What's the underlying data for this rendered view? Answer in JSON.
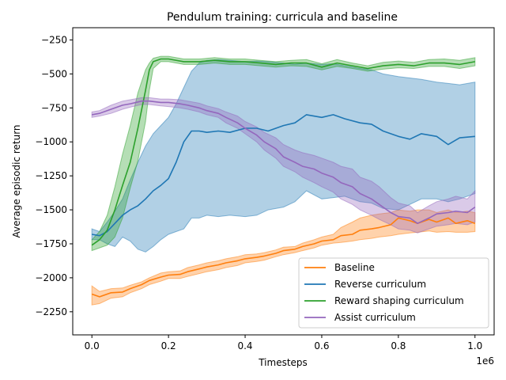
{
  "chart_data": {
    "type": "line",
    "title": "Pendulum training: curricula and baseline",
    "xlabel": "Timesteps",
    "ylabel": "Average episodic return",
    "x_offset_label": "1e6",
    "xlim": [
      -0.05,
      1.05
    ],
    "ylim": [
      -2420,
      -160
    ],
    "xticks": [
      0.0,
      0.2,
      0.4,
      0.6,
      0.8,
      1.0
    ],
    "xtick_labels": [
      "0.0",
      "0.2",
      "0.4",
      "0.6",
      "0.8",
      "1.0"
    ],
    "yticks": [
      -2250,
      -2000,
      -1750,
      -1500,
      -1250,
      -1000,
      -750,
      -500,
      -250
    ],
    "ytick_labels": [
      "−2250",
      "−2000",
      "−1750",
      "−1500",
      "−1250",
      "−1000",
      "−750",
      "−500",
      "−250"
    ],
    "grid": false,
    "legend_position": "lower-right",
    "series": [
      {
        "name": "Baseline",
        "color": "#ff7f0e",
        "x": [
          0.0,
          0.02,
          0.05,
          0.08,
          0.1,
          0.13,
          0.15,
          0.18,
          0.2,
          0.23,
          0.25,
          0.28,
          0.3,
          0.33,
          0.35,
          0.38,
          0.4,
          0.43,
          0.45,
          0.48,
          0.5,
          0.53,
          0.55,
          0.58,
          0.6,
          0.63,
          0.65,
          0.68,
          0.7,
          0.73,
          0.75,
          0.78,
          0.8,
          0.83,
          0.85,
          0.88,
          0.9,
          0.93,
          0.95,
          0.98,
          1.0
        ],
        "values": [
          -2120,
          -2140,
          -2110,
          -2105,
          -2080,
          -2050,
          -2020,
          -1995,
          -1980,
          -1975,
          -1955,
          -1935,
          -1920,
          -1905,
          -1890,
          -1875,
          -1860,
          -1850,
          -1840,
          -1820,
          -1800,
          -1790,
          -1770,
          -1750,
          -1730,
          -1720,
          -1690,
          -1680,
          -1650,
          -1640,
          -1630,
          -1610,
          -1560,
          -1580,
          -1600,
          -1570,
          -1590,
          -1560,
          -1600,
          -1580,
          -1600
        ],
        "lower": [
          -2200,
          -2190,
          -2150,
          -2140,
          -2110,
          -2080,
          -2050,
          -2025,
          -2005,
          -2005,
          -1990,
          -1970,
          -1955,
          -1940,
          -1925,
          -1910,
          -1890,
          -1880,
          -1870,
          -1845,
          -1830,
          -1815,
          -1800,
          -1780,
          -1760,
          -1745,
          -1740,
          -1730,
          -1720,
          -1710,
          -1700,
          -1690,
          -1680,
          -1670,
          -1665,
          -1655,
          -1665,
          -1660,
          -1665,
          -1665,
          -1660
        ],
        "upper": [
          -2060,
          -2100,
          -2080,
          -2075,
          -2055,
          -2030,
          -2000,
          -1965,
          -1955,
          -1950,
          -1925,
          -1905,
          -1890,
          -1875,
          -1860,
          -1845,
          -1830,
          -1825,
          -1815,
          -1795,
          -1775,
          -1770,
          -1745,
          -1720,
          -1700,
          -1680,
          -1630,
          -1590,
          -1560,
          -1540,
          -1530,
          -1520,
          -1500,
          -1510,
          -1500,
          -1500,
          -1520,
          -1500,
          -1520,
          -1510,
          -1520
        ]
      },
      {
        "name": "Reverse curriculum",
        "color": "#1f77b4",
        "x": [
          0.0,
          0.02,
          0.04,
          0.06,
          0.08,
          0.1,
          0.12,
          0.14,
          0.16,
          0.18,
          0.2,
          0.22,
          0.24,
          0.26,
          0.28,
          0.3,
          0.33,
          0.36,
          0.4,
          0.43,
          0.46,
          0.5,
          0.53,
          0.56,
          0.6,
          0.63,
          0.66,
          0.7,
          0.73,
          0.76,
          0.8,
          0.83,
          0.86,
          0.9,
          0.93,
          0.96,
          1.0
        ],
        "values": [
          -1680,
          -1690,
          -1660,
          -1600,
          -1540,
          -1500,
          -1470,
          -1420,
          -1360,
          -1320,
          -1270,
          -1150,
          -1000,
          -920,
          -920,
          -930,
          -920,
          -930,
          -900,
          -900,
          -920,
          -880,
          -860,
          -800,
          -820,
          -800,
          -830,
          -860,
          -870,
          -920,
          -960,
          -980,
          -940,
          -960,
          -1020,
          -970,
          -960
        ],
        "lower": [
          -1720,
          -1720,
          -1750,
          -1770,
          -1700,
          -1730,
          -1790,
          -1810,
          -1770,
          -1720,
          -1680,
          -1660,
          -1640,
          -1560,
          -1560,
          -1540,
          -1550,
          -1540,
          -1550,
          -1540,
          -1500,
          -1480,
          -1440,
          -1360,
          -1420,
          -1410,
          -1400,
          -1440,
          -1450,
          -1490,
          -1500,
          -1460,
          -1420,
          -1420,
          -1440,
          -1420,
          -1380
        ],
        "upper": [
          -1640,
          -1660,
          -1590,
          -1510,
          -1420,
          -1280,
          -1150,
          -1030,
          -940,
          -880,
          -820,
          -720,
          -600,
          -480,
          -420,
          -400,
          -395,
          -400,
          -410,
          -405,
          -410,
          -420,
          -430,
          -420,
          -430,
          -425,
          -440,
          -460,
          -470,
          -500,
          -520,
          -530,
          -540,
          -560,
          -570,
          -580,
          -560
        ]
      },
      {
        "name": "Reward shaping curriculum",
        "color": "#2ca02c",
        "x": [
          0.0,
          0.02,
          0.04,
          0.06,
          0.08,
          0.1,
          0.12,
          0.14,
          0.15,
          0.16,
          0.18,
          0.2,
          0.24,
          0.28,
          0.32,
          0.36,
          0.4,
          0.44,
          0.48,
          0.52,
          0.56,
          0.6,
          0.64,
          0.68,
          0.72,
          0.76,
          0.8,
          0.84,
          0.88,
          0.92,
          0.96,
          1.0
        ],
        "values": [
          -1760,
          -1720,
          -1650,
          -1500,
          -1320,
          -1150,
          -900,
          -620,
          -470,
          -410,
          -390,
          -390,
          -410,
          -410,
          -400,
          -410,
          -410,
          -420,
          -430,
          -420,
          -420,
          -450,
          -420,
          -440,
          -460,
          -440,
          -430,
          -440,
          -420,
          -420,
          -430,
          -410
        ],
        "lower": [
          -1800,
          -1780,
          -1760,
          -1700,
          -1560,
          -1340,
          -1140,
          -850,
          -620,
          -460,
          -410,
          -410,
          -430,
          -430,
          -420,
          -430,
          -430,
          -440,
          -450,
          -440,
          -445,
          -470,
          -445,
          -460,
          -480,
          -465,
          -455,
          -460,
          -445,
          -445,
          -460,
          -440
        ],
        "upper": [
          -1720,
          -1660,
          -1540,
          -1330,
          -1090,
          -880,
          -640,
          -470,
          -420,
          -385,
          -370,
          -370,
          -390,
          -390,
          -380,
          -390,
          -390,
          -400,
          -410,
          -400,
          -395,
          -425,
          -395,
          -420,
          -440,
          -415,
          -405,
          -415,
          -395,
          -390,
          -400,
          -380
        ]
      },
      {
        "name": "Assist curriculum",
        "color": "#9467bd",
        "x": [
          0.0,
          0.02,
          0.05,
          0.08,
          0.1,
          0.13,
          0.15,
          0.18,
          0.2,
          0.23,
          0.25,
          0.28,
          0.3,
          0.33,
          0.35,
          0.38,
          0.4,
          0.43,
          0.45,
          0.48,
          0.5,
          0.53,
          0.55,
          0.58,
          0.6,
          0.63,
          0.65,
          0.68,
          0.7,
          0.73,
          0.75,
          0.78,
          0.8,
          0.83,
          0.85,
          0.88,
          0.9,
          0.93,
          0.95,
          0.98,
          1.0
        ],
        "values": [
          -800,
          -790,
          -760,
          -730,
          -720,
          -700,
          -700,
          -710,
          -710,
          -720,
          -730,
          -750,
          -770,
          -790,
          -820,
          -860,
          -900,
          -950,
          -1000,
          -1050,
          -1110,
          -1150,
          -1180,
          -1200,
          -1230,
          -1260,
          -1300,
          -1330,
          -1380,
          -1420,
          -1460,
          -1520,
          -1550,
          -1560,
          -1600,
          -1560,
          -1530,
          -1520,
          -1510,
          -1520,
          -1480
        ],
        "lower": [
          -820,
          -810,
          -790,
          -760,
          -745,
          -725,
          -725,
          -735,
          -740,
          -750,
          -760,
          -780,
          -800,
          -820,
          -860,
          -900,
          -940,
          -1000,
          -1060,
          -1120,
          -1180,
          -1220,
          -1260,
          -1300,
          -1330,
          -1370,
          -1420,
          -1460,
          -1500,
          -1540,
          -1570,
          -1610,
          -1640,
          -1650,
          -1670,
          -1640,
          -1620,
          -1610,
          -1600,
          -1610,
          -1590
        ],
        "upper": [
          -780,
          -770,
          -730,
          -700,
          -690,
          -675,
          -675,
          -685,
          -685,
          -690,
          -700,
          -715,
          -735,
          -755,
          -780,
          -810,
          -850,
          -890,
          -930,
          -970,
          -1020,
          -1060,
          -1080,
          -1100,
          -1120,
          -1150,
          -1180,
          -1200,
          -1260,
          -1290,
          -1330,
          -1410,
          -1450,
          -1470,
          -1520,
          -1470,
          -1440,
          -1420,
          -1400,
          -1420,
          -1360
        ]
      }
    ]
  }
}
